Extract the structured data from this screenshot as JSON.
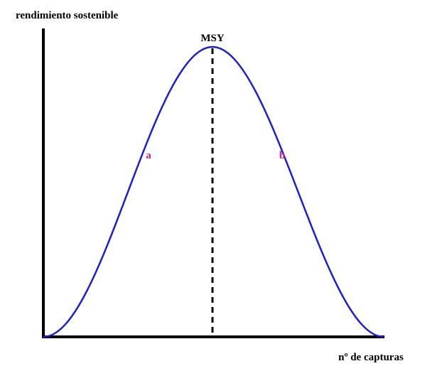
{
  "y_axis_label": "rendimiento sostenible",
  "x_axis_label": "nº de capturas",
  "peak_label": "MSY",
  "annotations": [
    "a",
    "b"
  ]
}
